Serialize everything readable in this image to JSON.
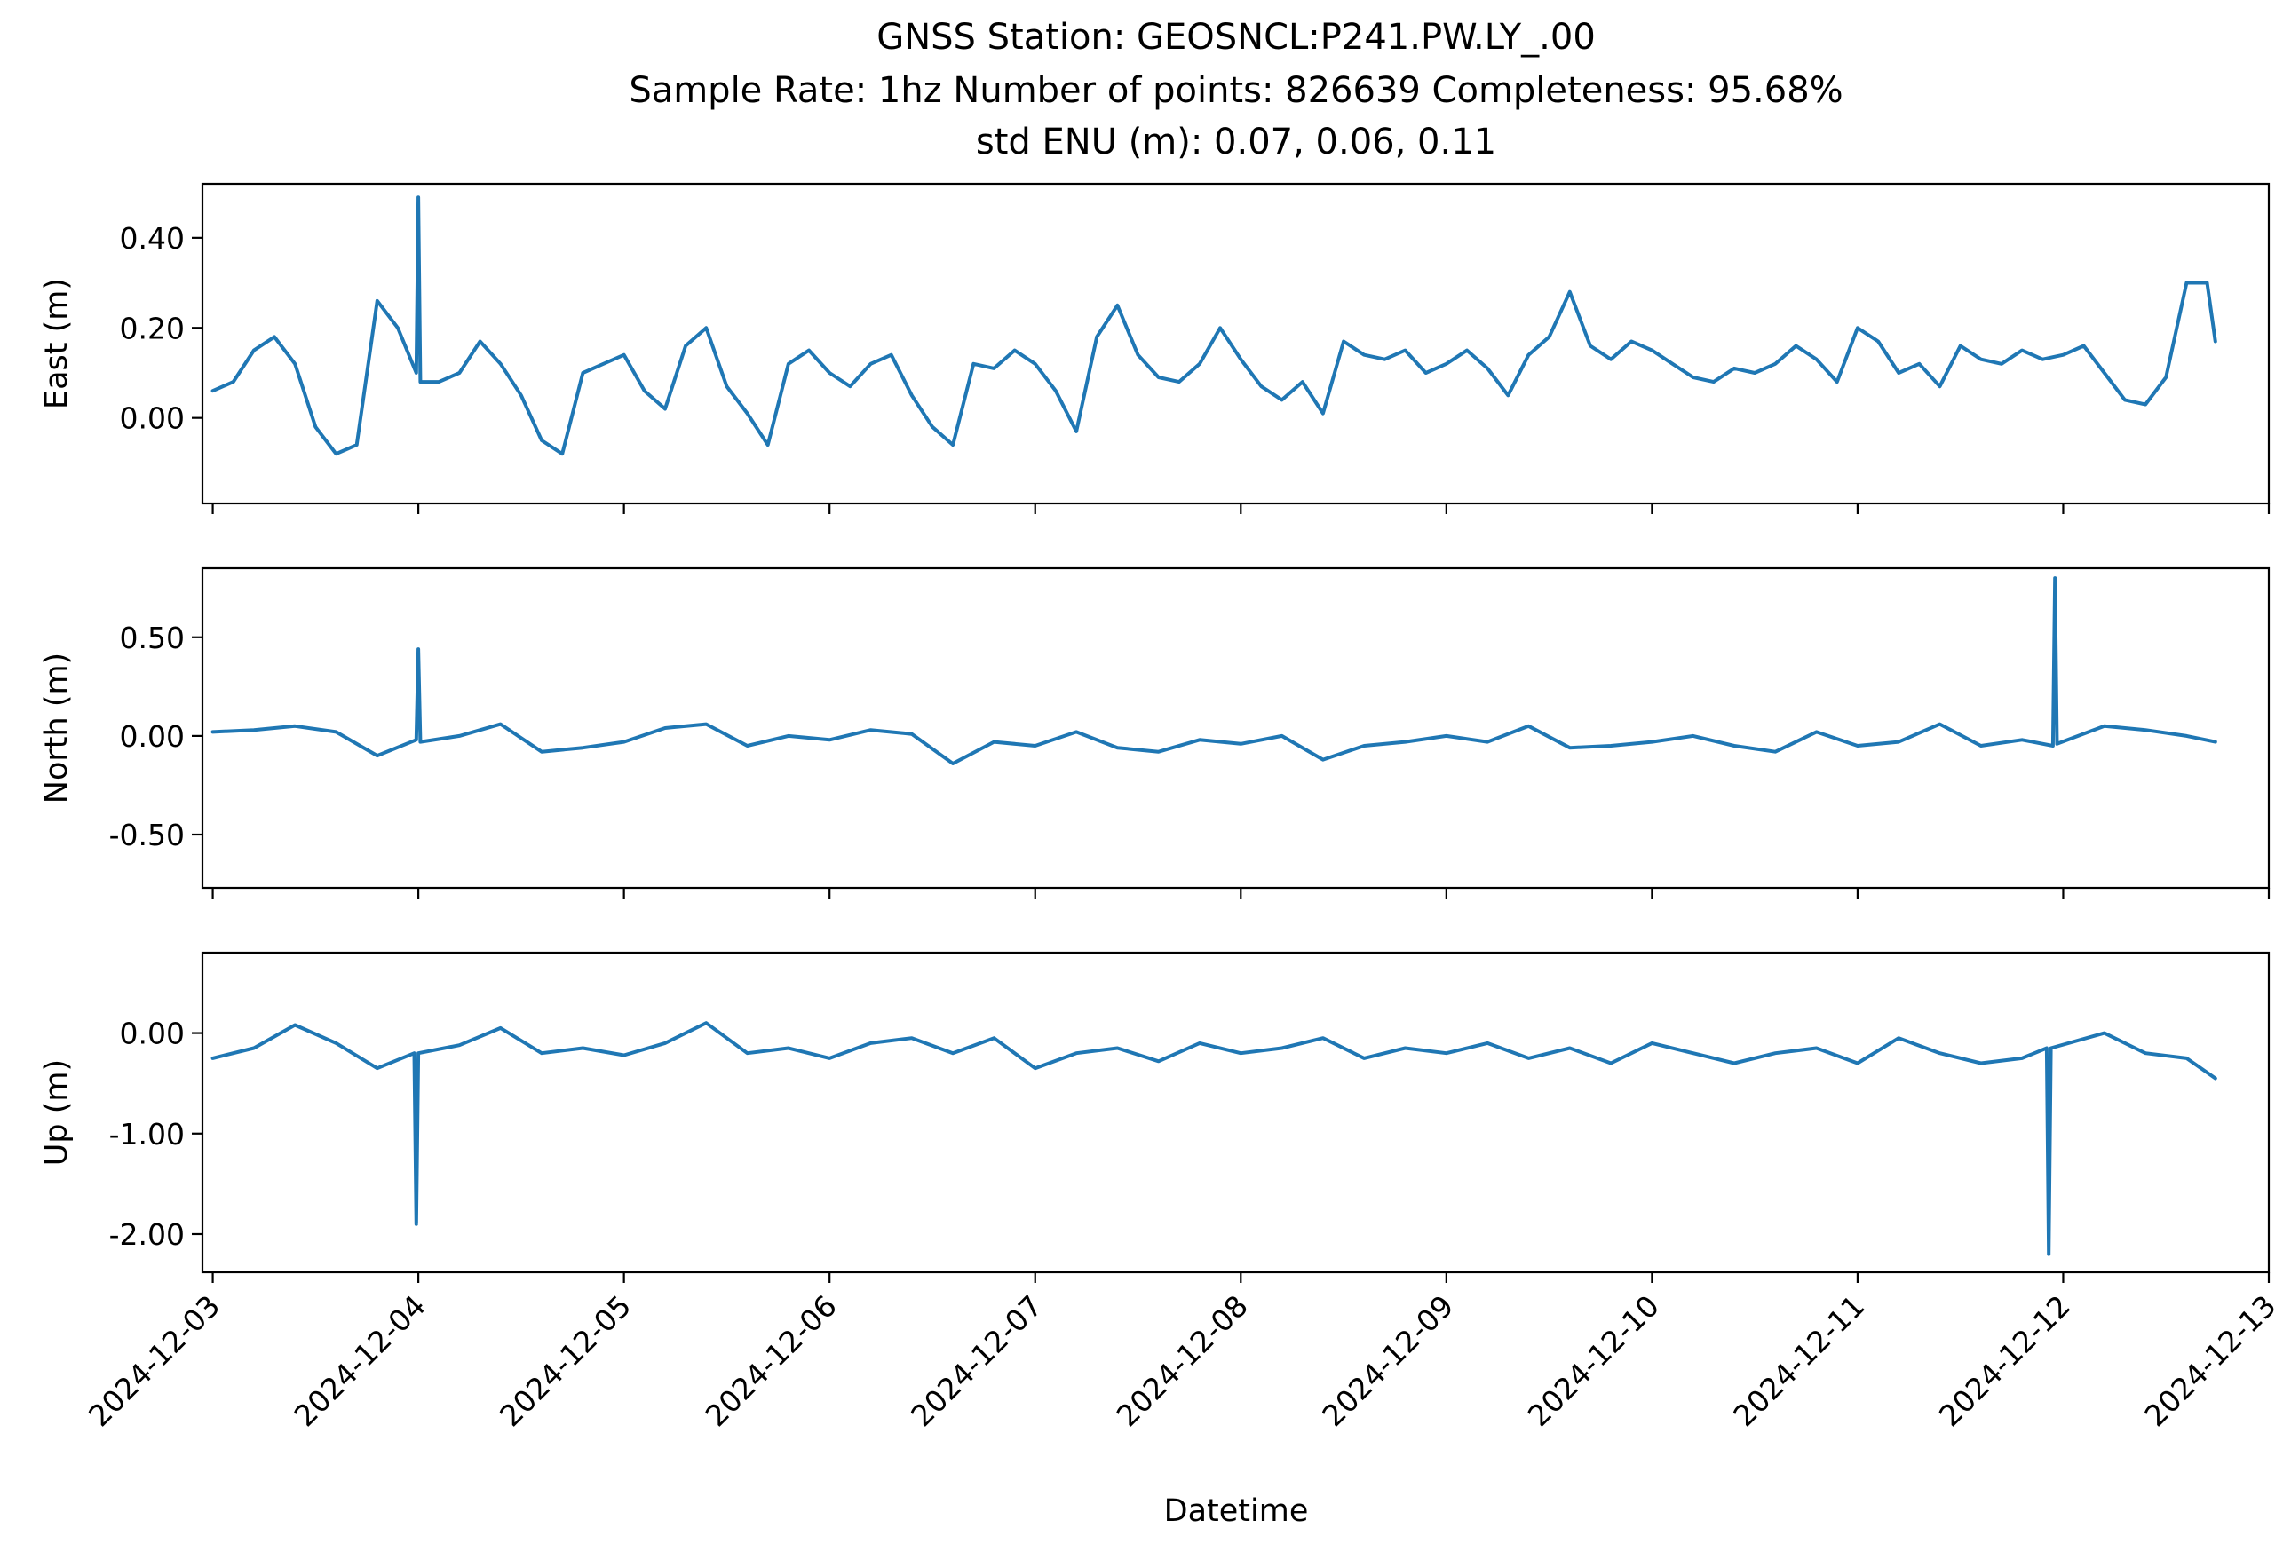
{
  "figure": {
    "title_lines": [
      "GNSS Station: GEOSNCL:P241.PW.LY_.00",
      "Sample Rate: 1hz   Number of points: 826639    Completeness:  95.68%",
      "std ENU (m):  0.07, 0.06, 0.11"
    ],
    "x_label": "Datetime",
    "line_color": "#1f77b4"
  },
  "chart_data": [
    {
      "type": "line",
      "title": "",
      "ylabel": "East (m)",
      "xlabel": "",
      "xlim": [
        -0.05,
        10.0
      ],
      "ylim": [
        -0.19,
        0.52
      ],
      "yticks": [
        0.0,
        0.2,
        0.4
      ],
      "ytick_labels": [
        "0.00",
        "0.20",
        "0.40"
      ],
      "grid": false,
      "series": [
        {
          "x": [
            0.0,
            0.1,
            0.2,
            0.3,
            0.4,
            0.5,
            0.6,
            0.7,
            0.8,
            0.9,
            0.99,
            1.0,
            1.01,
            1.1,
            1.2,
            1.3,
            1.4,
            1.5,
            1.6,
            1.7,
            1.8,
            1.9,
            2.0,
            2.1,
            2.2,
            2.3,
            2.4,
            2.5,
            2.6,
            2.7,
            2.8,
            2.9,
            3.0,
            3.1,
            3.2,
            3.3,
            3.4,
            3.5,
            3.6,
            3.7,
            3.8,
            3.9,
            4.0,
            4.1,
            4.2,
            4.3,
            4.4,
            4.5,
            4.6,
            4.7,
            4.8,
            4.9,
            5.0,
            5.1,
            5.2,
            5.3,
            5.4,
            5.5,
            5.6,
            5.7,
            5.8,
            5.9,
            6.0,
            6.1,
            6.2,
            6.3,
            6.4,
            6.5,
            6.6,
            6.7,
            6.8,
            6.9,
            7.0,
            7.1,
            7.2,
            7.3,
            7.4,
            7.5,
            7.6,
            7.7,
            7.8,
            7.9,
            8.0,
            8.1,
            8.2,
            8.3,
            8.4,
            8.5,
            8.6,
            8.7,
            8.8,
            8.9,
            9.0,
            9.1,
            9.2,
            9.3,
            9.4,
            9.5,
            9.6,
            9.7,
            9.74
          ],
          "y": [
            0.06,
            0.08,
            0.15,
            0.18,
            0.12,
            -0.02,
            -0.08,
            -0.06,
            0.26,
            0.2,
            0.1,
            0.49,
            0.08,
            0.08,
            0.1,
            0.17,
            0.12,
            0.05,
            -0.05,
            -0.08,
            0.1,
            0.12,
            0.14,
            0.06,
            0.02,
            0.16,
            0.2,
            0.07,
            0.01,
            -0.06,
            0.12,
            0.15,
            0.1,
            0.07,
            0.12,
            0.14,
            0.05,
            -0.02,
            -0.06,
            0.12,
            0.11,
            0.15,
            0.12,
            0.06,
            -0.03,
            0.18,
            0.25,
            0.14,
            0.09,
            0.08,
            0.12,
            0.2,
            0.13,
            0.07,
            0.04,
            0.08,
            0.01,
            0.17,
            0.14,
            0.13,
            0.15,
            0.1,
            0.12,
            0.15,
            0.11,
            0.05,
            0.14,
            0.18,
            0.28,
            0.16,
            0.13,
            0.17,
            0.15,
            0.12,
            0.09,
            0.08,
            0.11,
            0.1,
            0.12,
            0.16,
            0.13,
            0.08,
            0.2,
            0.17,
            0.1,
            0.12,
            0.07,
            0.16,
            0.13,
            0.12,
            0.15,
            0.13,
            0.14,
            0.16,
            0.1,
            0.04,
            0.03,
            0.09,
            0.3,
            0.3,
            0.17
          ]
        }
      ]
    },
    {
      "type": "line",
      "title": "",
      "ylabel": "North (m)",
      "xlabel": "",
      "xlim": [
        -0.05,
        10.0
      ],
      "ylim": [
        -0.77,
        0.85
      ],
      "yticks": [
        -0.5,
        0.0,
        0.5
      ],
      "ytick_labels": [
        "-0.50",
        "0.00",
        "0.50"
      ],
      "grid": false,
      "series": [
        {
          "x": [
            0.0,
            0.2,
            0.4,
            0.6,
            0.8,
            0.99,
            1.0,
            1.01,
            1.2,
            1.4,
            1.6,
            1.8,
            2.0,
            2.2,
            2.4,
            2.6,
            2.8,
            3.0,
            3.2,
            3.4,
            3.6,
            3.8,
            4.0,
            4.2,
            4.4,
            4.6,
            4.8,
            5.0,
            5.2,
            5.4,
            5.6,
            5.8,
            6.0,
            6.2,
            6.4,
            6.6,
            6.8,
            7.0,
            7.2,
            7.4,
            7.6,
            7.8,
            8.0,
            8.2,
            8.4,
            8.6,
            8.8,
            8.95,
            8.96,
            8.97,
            9.2,
            9.4,
            9.6,
            9.74
          ],
          "y": [
            0.02,
            0.03,
            0.05,
            0.02,
            -0.1,
            -0.02,
            0.44,
            -0.03,
            0.0,
            0.06,
            -0.08,
            -0.06,
            -0.03,
            0.04,
            0.06,
            -0.05,
            0.0,
            -0.02,
            0.03,
            0.01,
            -0.14,
            -0.03,
            -0.05,
            0.02,
            -0.06,
            -0.08,
            -0.02,
            -0.04,
            0.0,
            -0.12,
            -0.05,
            -0.03,
            0.0,
            -0.03,
            0.05,
            -0.06,
            -0.05,
            -0.03,
            0.0,
            -0.05,
            -0.08,
            0.02,
            -0.05,
            -0.03,
            0.06,
            -0.05,
            -0.02,
            -0.05,
            0.8,
            -0.04,
            0.05,
            0.03,
            0.0,
            -0.03
          ]
        }
      ]
    },
    {
      "type": "line",
      "title": "",
      "ylabel": "Up (m)",
      "xlabel": "Datetime",
      "xlim": [
        -0.05,
        10.0
      ],
      "ylim": [
        -2.38,
        0.8
      ],
      "yticks": [
        -2.0,
        -1.0,
        0.0
      ],
      "ytick_labels": [
        "-2.00",
        "-1.00",
        "0.00"
      ],
      "grid": false,
      "xticks": [
        0,
        1,
        2,
        3,
        4,
        5,
        6,
        7,
        8,
        9,
        10
      ],
      "xtick_labels": [
        "2024-12-03",
        "2024-12-04",
        "2024-12-05",
        "2024-12-06",
        "2024-12-07",
        "2024-12-08",
        "2024-12-09",
        "2024-12-10",
        "2024-12-11",
        "2024-12-12",
        "2024-12-13"
      ],
      "series": [
        {
          "x": [
            0.0,
            0.2,
            0.4,
            0.6,
            0.8,
            0.98,
            0.99,
            1.0,
            1.2,
            1.4,
            1.6,
            1.8,
            2.0,
            2.2,
            2.4,
            2.6,
            2.8,
            3.0,
            3.2,
            3.4,
            3.6,
            3.8,
            4.0,
            4.2,
            4.4,
            4.6,
            4.8,
            5.0,
            5.2,
            5.4,
            5.6,
            5.8,
            6.0,
            6.2,
            6.4,
            6.6,
            6.8,
            7.0,
            7.2,
            7.4,
            7.6,
            7.8,
            8.0,
            8.2,
            8.4,
            8.6,
            8.8,
            8.92,
            8.93,
            8.94,
            9.2,
            9.4,
            9.6,
            9.74
          ],
          "y": [
            -0.25,
            -0.15,
            0.08,
            -0.1,
            -0.35,
            -0.2,
            -1.9,
            -0.2,
            -0.12,
            0.05,
            -0.2,
            -0.15,
            -0.22,
            -0.1,
            0.1,
            -0.2,
            -0.15,
            -0.25,
            -0.1,
            -0.05,
            -0.2,
            -0.05,
            -0.35,
            -0.2,
            -0.15,
            -0.28,
            -0.1,
            -0.2,
            -0.15,
            -0.05,
            -0.25,
            -0.15,
            -0.2,
            -0.1,
            -0.25,
            -0.15,
            -0.3,
            -0.1,
            -0.2,
            -0.3,
            -0.2,
            -0.15,
            -0.3,
            -0.05,
            -0.2,
            -0.3,
            -0.25,
            -0.15,
            -2.2,
            -0.15,
            0.0,
            -0.2,
            -0.25,
            -0.45
          ]
        }
      ]
    }
  ]
}
